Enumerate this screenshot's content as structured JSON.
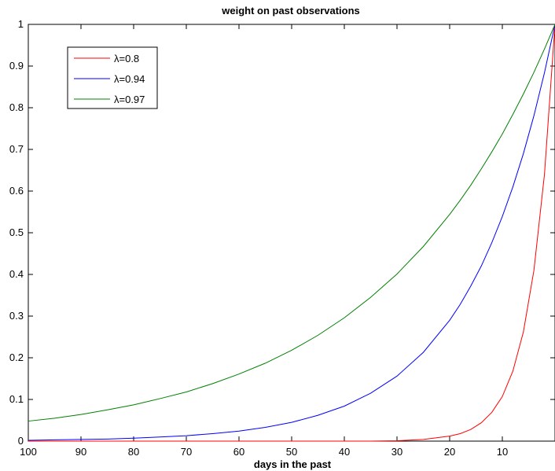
{
  "chart_data": {
    "type": "line",
    "title": "weight on past observations",
    "xlabel": "days in the past",
    "ylabel": "",
    "xlim": [
      100,
      0
    ],
    "ylim": [
      0,
      1
    ],
    "x_reversed": true,
    "x_ticks": [
      100,
      90,
      80,
      70,
      60,
      50,
      40,
      30,
      20,
      10
    ],
    "x_tick_labels": [
      "100",
      "90",
      "80",
      "70",
      "60",
      "50",
      "40",
      "30",
      "20",
      "10"
    ],
    "y_ticks": [
      0,
      0.1,
      0.2,
      0.3,
      0.4,
      0.5,
      0.6,
      0.7,
      0.8,
      0.9,
      1
    ],
    "y_tick_labels": [
      "0",
      "0.1",
      "0.2",
      "0.3",
      "0.4",
      "0.5",
      "0.6",
      "0.7",
      "0.8",
      "0.9",
      "1"
    ],
    "grid": false,
    "legend_position": "top-left",
    "x": [
      100,
      95,
      90,
      85,
      80,
      75,
      70,
      65,
      60,
      55,
      50,
      45,
      40,
      35,
      30,
      25,
      20,
      18,
      16,
      14,
      12,
      10,
      8,
      6,
      4,
      2,
      0
    ],
    "series": [
      {
        "name": "λ=0.8",
        "color": "#ff0000",
        "values": [
          0,
          0,
          0,
          0,
          0,
          0,
          0,
          0,
          0,
          0,
          0,
          0,
          0,
          0,
          0.001,
          0.004,
          0.012,
          0.018,
          0.028,
          0.044,
          0.069,
          0.107,
          0.168,
          0.262,
          0.41,
          0.64,
          1.0
        ]
      },
      {
        "name": "λ=0.94",
        "color": "#0000ff",
        "values": [
          0.002,
          0.003,
          0.004,
          0.005,
          0.007,
          0.01,
          0.013,
          0.018,
          0.024,
          0.033,
          0.045,
          0.062,
          0.084,
          0.115,
          0.156,
          0.213,
          0.29,
          0.328,
          0.372,
          0.42,
          0.476,
          0.539,
          0.61,
          0.69,
          0.781,
          0.884,
          1.0
        ]
      },
      {
        "name": "λ=0.97",
        "color": "#008000",
        "values": [
          0.048,
          0.055,
          0.064,
          0.075,
          0.087,
          0.102,
          0.118,
          0.138,
          0.161,
          0.187,
          0.218,
          0.254,
          0.296,
          0.345,
          0.401,
          0.467,
          0.544,
          0.578,
          0.614,
          0.653,
          0.694,
          0.737,
          0.784,
          0.833,
          0.885,
          0.941,
          1.0
        ]
      }
    ]
  }
}
